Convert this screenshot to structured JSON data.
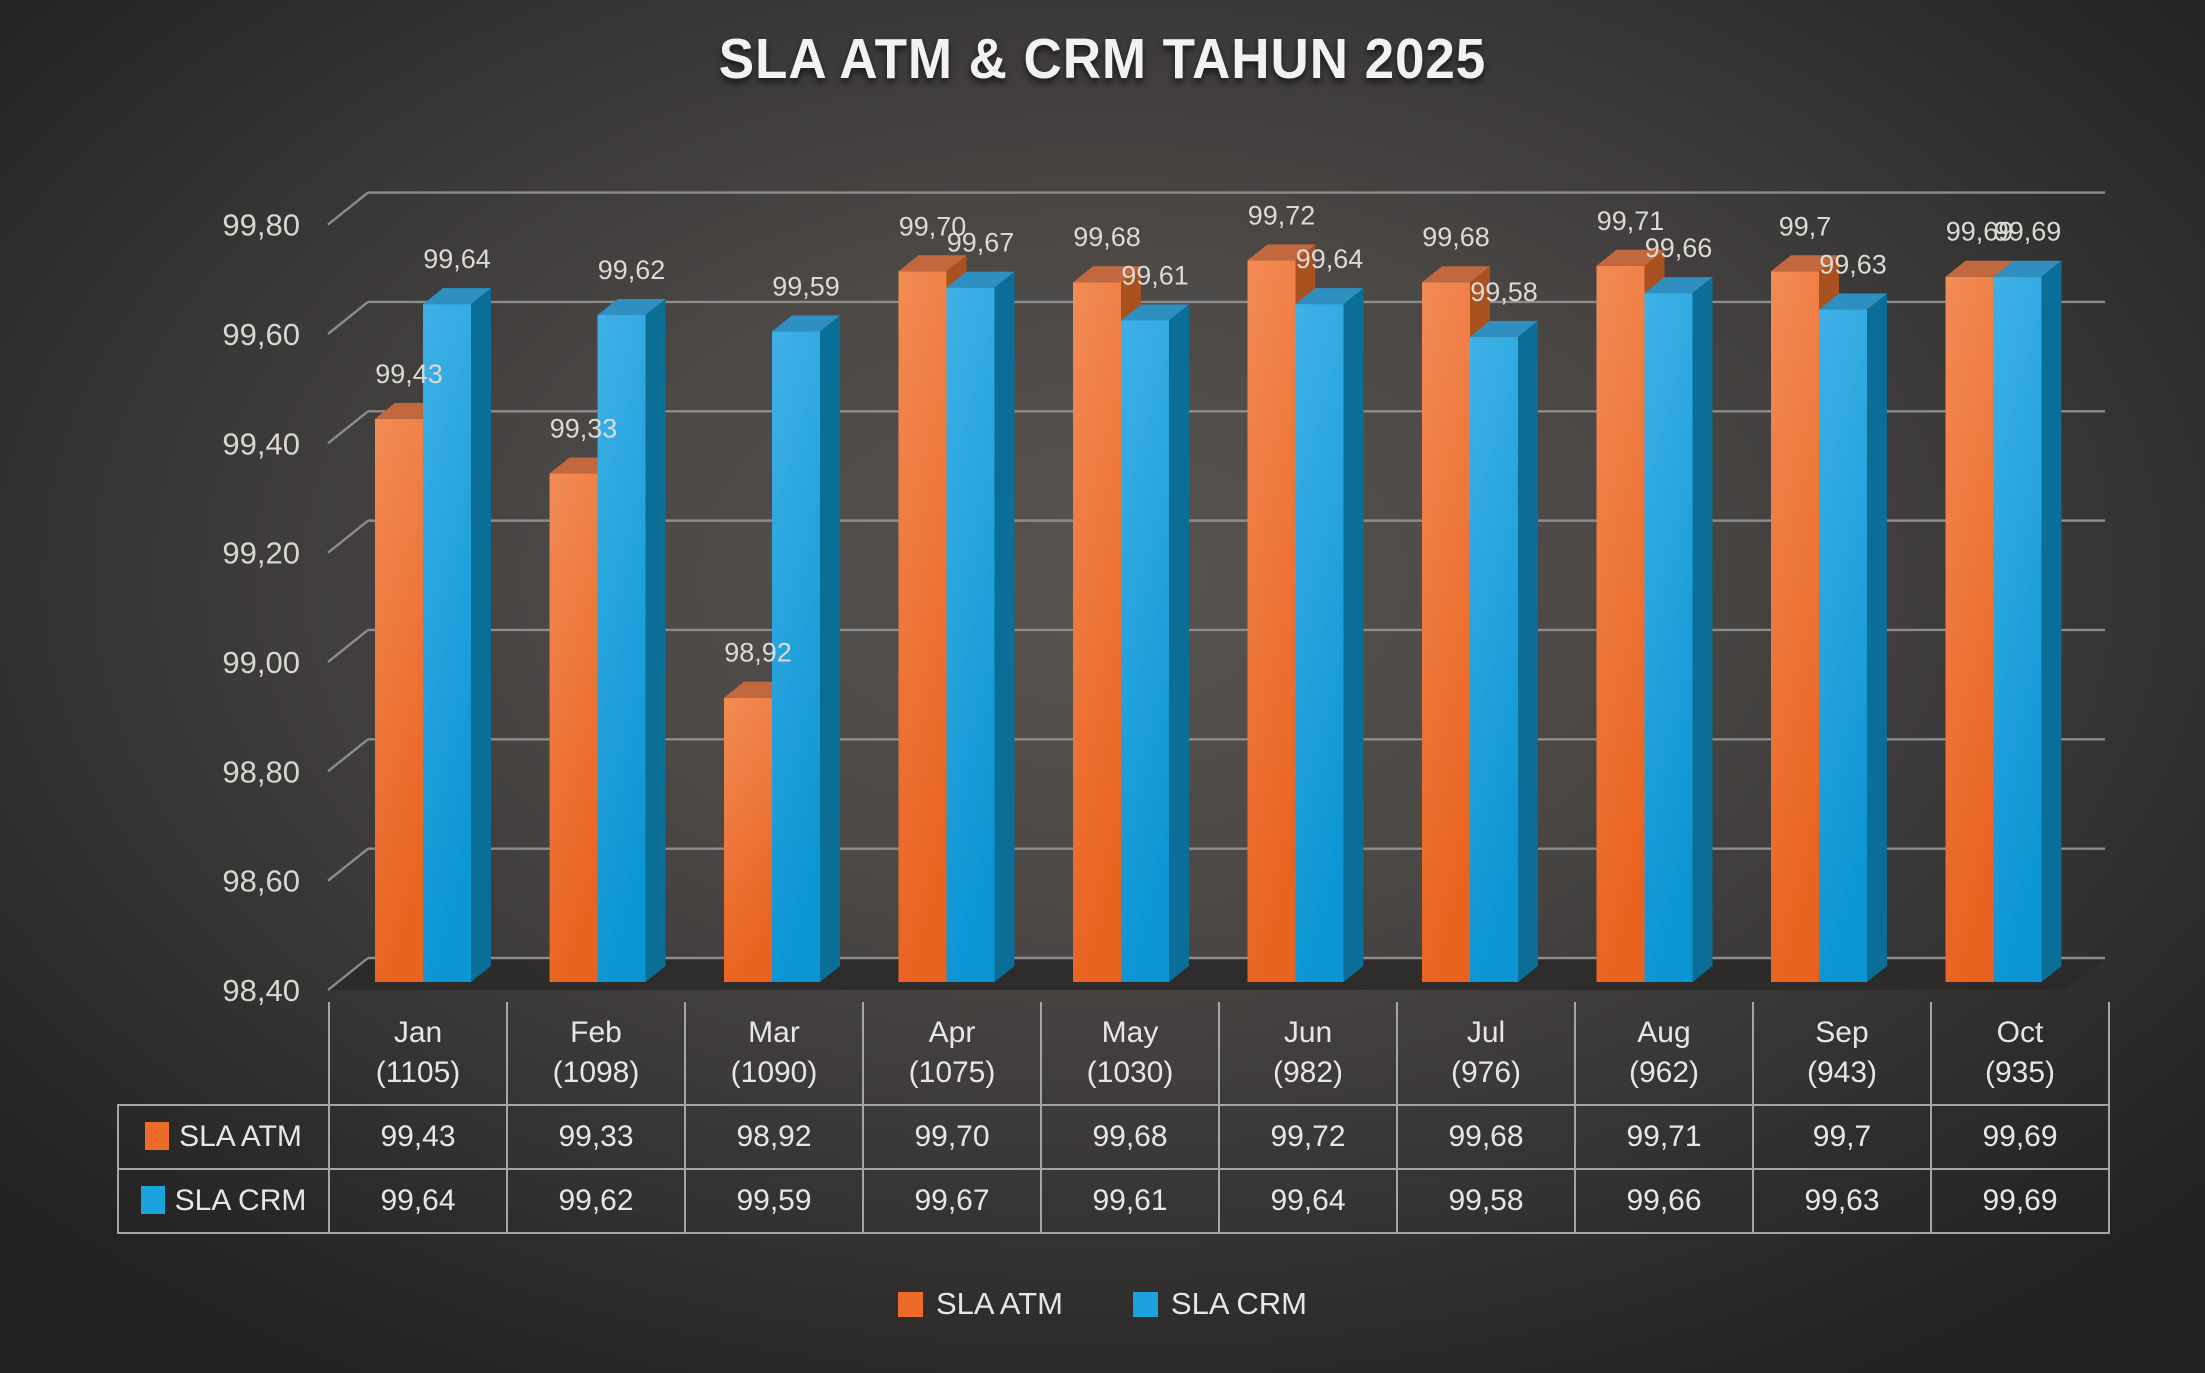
{
  "title": "SLA ATM & CRM TAHUN 2025",
  "chart_data": {
    "type": "bar",
    "style": "3d-clustered-column",
    "title": "SLA ATM & CRM TAHUN 2025",
    "categories": [
      "Jan",
      "Feb",
      "Mar",
      "Apr",
      "May",
      "Jun",
      "Jul",
      "Aug",
      "Sep",
      "Oct"
    ],
    "category_sublabels": [
      "(1105)",
      "(1098)",
      "(1090)",
      "(1075)",
      "(1030)",
      "(982)",
      "(976)",
      "(962)",
      "(943)",
      "(935)"
    ],
    "series": [
      {
        "name": "SLA ATM",
        "color": "#EC6B28",
        "color_gradient_light": "#F28B55",
        "color_gradient_dark": "#E96320",
        "color_top": "#C2683F",
        "color_side": "#A9521F",
        "values": [
          99.43,
          99.33,
          98.92,
          99.7,
          99.68,
          99.72,
          99.68,
          99.71,
          99.7,
          99.69
        ],
        "labels": [
          "99,43",
          "99,33",
          "98,92",
          "99,70",
          "99,68",
          "99,72",
          "99,68",
          "99,71",
          "99,7",
          "99,69"
        ]
      },
      {
        "name": "SLA CRM",
        "color": "#1CA3DE",
        "color_gradient_light": "#3FB1E7",
        "color_gradient_dark": "#0C95D3",
        "color_top": "#2E8FC0",
        "color_side": "#0A6E96",
        "values": [
          99.64,
          99.62,
          99.59,
          99.67,
          99.61,
          99.64,
          99.58,
          99.66,
          99.63,
          99.69
        ],
        "labels": [
          "99,64",
          "99,62",
          "99,59",
          "99,67",
          "99,61",
          "99,64",
          "99,58",
          "99,66",
          "99,63",
          "99,69"
        ]
      }
    ],
    "ylim": [
      98.4,
      99.8
    ],
    "ytick_step": 0.2,
    "yticks": [
      "98,40",
      "98,60",
      "98,80",
      "99,00",
      "99,20",
      "99,40",
      "99,60",
      "99,80"
    ],
    "grid": true,
    "grid_color": "#8C8C8C",
    "label_color": "#DCDAD7",
    "legend_position": "bottom",
    "data_table_shown": true
  },
  "legend": {
    "items": [
      {
        "label": "SLA ATM"
      },
      {
        "label": "SLA CRM"
      }
    ]
  }
}
